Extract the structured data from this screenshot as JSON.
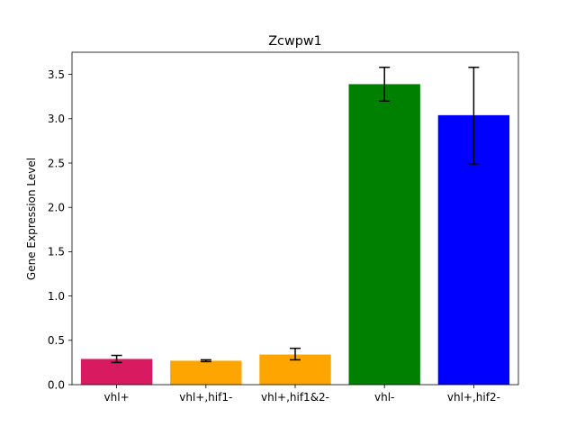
{
  "chart_data": {
    "type": "bar",
    "title": "Zcwpw1",
    "xlabel": "",
    "ylabel": "Gene Expression Level",
    "categories": [
      "vhl+",
      "vhl+,hif1-",
      "vhl+,hif1&2-",
      "vhl-",
      "vhl+,hif2-"
    ],
    "values": [
      0.29,
      0.27,
      0.34,
      3.39,
      3.04
    ],
    "error": [
      [
        0.25,
        0.33
      ],
      [
        0.26,
        0.28
      ],
      [
        0.28,
        0.41
      ],
      [
        3.2,
        3.58
      ],
      [
        2.49,
        3.58
      ]
    ],
    "colors": [
      "#d81b60",
      "#ffa500",
      "#ffa500",
      "#008000",
      "#0000ff"
    ],
    "ylim": [
      0,
      3.75
    ],
    "yticks": [
      0.0,
      0.5,
      1.0,
      1.5,
      2.0,
      2.5,
      3.0,
      3.5
    ],
    "ytick_labels": [
      "0.0",
      "0.5",
      "1.0",
      "1.5",
      "2.0",
      "2.5",
      "3.0",
      "3.5"
    ],
    "grid": false,
    "legend": "none"
  }
}
